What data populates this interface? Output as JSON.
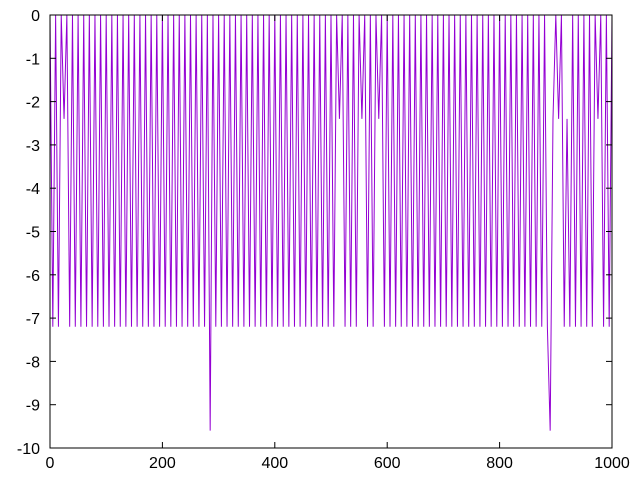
{
  "chart_data": {
    "type": "line",
    "title": "",
    "xlabel": "",
    "ylabel": "",
    "xlim": [
      0,
      1000
    ],
    "ylim": [
      -10,
      0
    ],
    "grid": false,
    "xticks": [
      "0",
      "200",
      "400",
      "600",
      "800",
      "1000"
    ],
    "yticks": [
      "0",
      "-1",
      "-2",
      "-3",
      "-4",
      "-5",
      "-6",
      "-7",
      "-8",
      "-9",
      "-10"
    ],
    "series": [
      {
        "color": "#9400d3",
        "x_start": 0,
        "x_step": 5,
        "values": [
          0,
          -7.2,
          0,
          -7.2,
          0,
          -2.4,
          0,
          -7.2,
          0,
          -7.2,
          0,
          -7.2,
          0,
          -7.2,
          0,
          -7.2,
          0,
          -7.2,
          0,
          -7.2,
          0,
          -7.2,
          0,
          -7.2,
          0,
          -7.2,
          0,
          -7.2,
          0,
          -7.2,
          0,
          -7.2,
          0,
          -7.2,
          0,
          -7.2,
          0,
          -7.2,
          0,
          -7.2,
          0,
          -7.2,
          0,
          -7.2,
          0,
          -7.2,
          0,
          -7.2,
          0,
          -7.2,
          0,
          -7.2,
          0,
          -7.2,
          0,
          -7.2,
          0,
          -9.6,
          0,
          -7.2,
          0,
          -7.2,
          0,
          -7.2,
          0,
          -7.2,
          0,
          -7.2,
          0,
          -7.2,
          0,
          -7.2,
          0,
          -7.2,
          0,
          -7.2,
          0,
          -7.2,
          0,
          -7.2,
          0,
          -7.2,
          0,
          -7.2,
          0,
          -7.2,
          0,
          -7.2,
          0,
          -7.2,
          0,
          -7.2,
          0,
          -7.2,
          0,
          -7.2,
          0,
          -7.2,
          0,
          -7.2,
          0,
          -7.2,
          0,
          -2.4,
          0,
          -7.2,
          0,
          -7.2,
          0,
          -7.2,
          0,
          -2.4,
          0,
          -7.2,
          0,
          -7.2,
          0,
          -2.4,
          0,
          -7.2,
          0,
          -7.2,
          0,
          -7.2,
          0,
          -7.2,
          0,
          -7.2,
          0,
          -7.2,
          0,
          -7.2,
          0,
          -7.2,
          0,
          -7.2,
          0,
          -7.2,
          0,
          -7.2,
          0,
          -7.2,
          0,
          -7.2,
          0,
          -7.2,
          0,
          -7.2,
          0,
          -7.2,
          0,
          -7.2,
          0,
          -7.2,
          0,
          -7.2,
          0,
          -7.2,
          0,
          -7.2,
          0,
          -7.2,
          0,
          -7.2,
          0,
          -7.2,
          0,
          -7.2,
          0,
          -7.2,
          0,
          -7.2,
          0,
          -7.2,
          0,
          -7.2,
          0,
          -7.2,
          -9.6,
          -2.4,
          0,
          -2.4,
          0,
          -7.2,
          -2.4,
          -7.2,
          0,
          -7.2,
          0,
          -7.2,
          0,
          -7.2,
          0,
          -7.2,
          0,
          -2.4,
          0,
          -7.2,
          0,
          -7.2,
          0
        ]
      }
    ]
  }
}
